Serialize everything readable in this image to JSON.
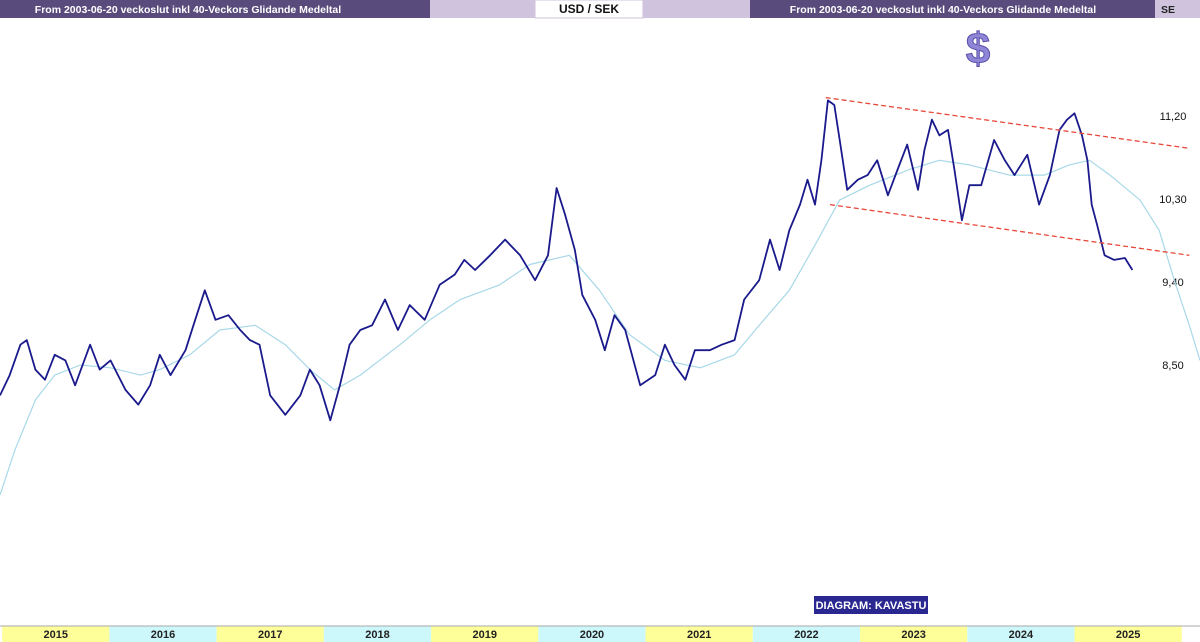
{
  "chart_data": {
    "type": "line",
    "header": {
      "left": "From 2003-06-20 veckoslut inkl 40-Veckors Glidande Medeltal",
      "title": "USD / SEK",
      "right": "From 2003-06-20 veckoslut inkl 40-Veckors Glidande Medeltal",
      "edge": "SE"
    },
    "icon": "$",
    "credit": "DIAGRAM: KAVASTU",
    "xlim": [
      2014.98,
      2026.17
    ],
    "ylim": [
      5.69,
      12.23
    ],
    "xticks": [
      {
        "value": 2015.5,
        "label": "2015"
      },
      {
        "value": 2016.5,
        "label": "2016"
      },
      {
        "value": 2017.5,
        "label": "2017"
      },
      {
        "value": 2018.5,
        "label": "2018"
      },
      {
        "value": 2019.5,
        "label": "2019"
      },
      {
        "value": 2020.5,
        "label": "2020"
      },
      {
        "value": 2021.5,
        "label": "2021"
      },
      {
        "value": 2022.5,
        "label": "2022"
      },
      {
        "value": 2023.5,
        "label": "2023"
      },
      {
        "value": 2024.5,
        "label": "2024"
      },
      {
        "value": 2025.5,
        "label": "2025"
      }
    ],
    "xband_colors": [
      "#ffff99",
      "#ccf7fb"
    ],
    "yticks": [
      {
        "value": 8.5,
        "label": "8,50"
      },
      {
        "value": 9.4,
        "label": "9,40"
      },
      {
        "value": 10.3,
        "label": "10,30"
      },
      {
        "value": 11.2,
        "label": "11,20"
      }
    ],
    "series": [
      {
        "color": "#1a1a8c",
        "width": 1.8,
        "x": [
          2014.98,
          2015.07,
          2015.17,
          2015.23,
          2015.31,
          2015.4,
          2015.49,
          2015.59,
          2015.68,
          2015.82,
          2015.91,
          2016.01,
          2016.15,
          2016.27,
          2016.38,
          2016.47,
          2016.57,
          2016.71,
          2016.8,
          2016.89,
          2016.99,
          2017.11,
          2017.22,
          2017.31,
          2017.4,
          2017.5,
          2017.64,
          2017.78,
          2017.87,
          2017.96,
          2018.06,
          2018.15,
          2018.24,
          2018.34,
          2018.45,
          2018.57,
          2018.69,
          2018.8,
          2018.94,
          2019.08,
          2019.22,
          2019.31,
          2019.41,
          2019.55,
          2019.69,
          2019.83,
          2019.97,
          2020.09,
          2020.17,
          2020.25,
          2020.34,
          2020.41,
          2020.53,
          2020.62,
          2020.71,
          2020.81,
          2020.95,
          2021.09,
          2021.18,
          2021.27,
          2021.37,
          2021.46,
          2021.6,
          2021.71,
          2021.83,
          2021.92,
          2022.06,
          2022.16,
          2022.25,
          2022.34,
          2022.44,
          2022.51,
          2022.58,
          2022.64,
          2022.7,
          2022.76,
          2022.81,
          2022.88,
          2022.98,
          2023.07,
          2023.16,
          2023.26,
          2023.35,
          2023.44,
          2023.54,
          2023.6,
          2023.67,
          2023.74,
          2023.82,
          2023.88,
          2023.95,
          2024.02,
          2024.13,
          2024.25,
          2024.35,
          2024.44,
          2024.56,
          2024.67,
          2024.77,
          2024.86,
          2024.93,
          2025.0,
          2025.07,
          2025.12,
          2025.16,
          2025.21,
          2025.28,
          2025.37,
          2025.47,
          2025.54
        ],
        "values": [
          8.18,
          8.4,
          8.73,
          8.78,
          8.46,
          8.35,
          8.62,
          8.56,
          8.29,
          8.73,
          8.46,
          8.56,
          8.24,
          8.08,
          8.29,
          8.62,
          8.4,
          8.67,
          9.0,
          9.32,
          9.0,
          9.05,
          8.89,
          8.78,
          8.73,
          8.18,
          7.97,
          8.18,
          8.46,
          8.29,
          7.91,
          8.29,
          8.73,
          8.89,
          8.94,
          9.22,
          8.89,
          9.16,
          9.0,
          9.38,
          9.49,
          9.65,
          9.54,
          9.7,
          9.87,
          9.7,
          9.43,
          9.7,
          10.43,
          10.14,
          9.76,
          9.27,
          9.0,
          8.67,
          9.05,
          8.89,
          8.29,
          8.4,
          8.73,
          8.51,
          8.35,
          8.67,
          8.67,
          8.73,
          8.78,
          9.22,
          9.43,
          9.87,
          9.54,
          9.97,
          10.25,
          10.52,
          10.25,
          10.73,
          11.38,
          11.33,
          10.95,
          10.41,
          10.52,
          10.57,
          10.73,
          10.35,
          10.63,
          10.9,
          10.41,
          10.84,
          11.17,
          11.0,
          11.06,
          10.63,
          10.08,
          10.46,
          10.46,
          10.95,
          10.73,
          10.57,
          10.79,
          10.25,
          10.57,
          11.06,
          11.17,
          11.24,
          11.0,
          10.73,
          10.25,
          10.03,
          9.7,
          9.65,
          9.67,
          9.54
        ]
      },
      {
        "color": "#a8d8e8",
        "width": 1.2,
        "x": [
          2014.98,
          2015.12,
          2015.31,
          2015.49,
          2015.73,
          2016.01,
          2016.29,
          2016.47,
          2016.75,
          2017.03,
          2017.36,
          2017.64,
          2017.87,
          2018.1,
          2018.34,
          2018.71,
          2018.99,
          2019.27,
          2019.64,
          2019.92,
          2020.29,
          2020.57,
          2020.85,
          2021.18,
          2021.51,
          2021.83,
          2022.06,
          2022.34,
          2022.58,
          2022.81,
          2023.09,
          2023.46,
          2023.74,
          2024.02,
          2024.39,
          2024.72,
          2024.95,
          2025.14,
          2025.33,
          2025.61,
          2025.79,
          2025.93,
          2026.07,
          2026.17
        ],
        "values": [
          7.1,
          7.59,
          8.13,
          8.4,
          8.51,
          8.48,
          8.4,
          8.46,
          8.62,
          8.89,
          8.94,
          8.73,
          8.46,
          8.24,
          8.4,
          8.73,
          9.0,
          9.22,
          9.38,
          9.6,
          9.7,
          9.32,
          8.84,
          8.56,
          8.48,
          8.62,
          8.94,
          9.32,
          9.81,
          10.3,
          10.46,
          10.63,
          10.73,
          10.68,
          10.57,
          10.57,
          10.68,
          10.73,
          10.57,
          10.3,
          9.97,
          9.43,
          8.94,
          8.56
        ]
      }
    ],
    "trendlines": [
      {
        "color": "#e8483a",
        "x": [
          2022.68,
          2026.07
        ],
        "values": [
          11.41,
          10.86
        ]
      },
      {
        "color": "#e8483a",
        "x": [
          2022.72,
          2026.07
        ],
        "values": [
          10.25,
          9.7
        ]
      }
    ]
  }
}
